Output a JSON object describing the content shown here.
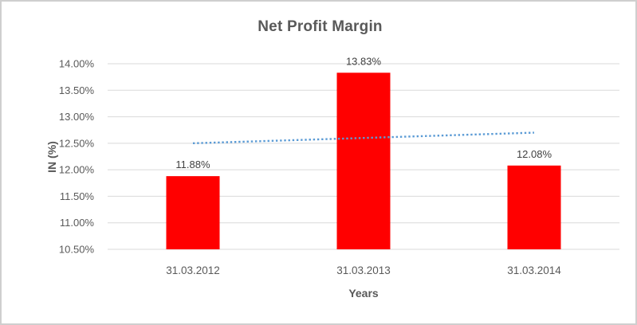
{
  "frame": {
    "background": "#ffffff",
    "border_color": "#cfcfcf"
  },
  "chart_data": {
    "type": "bar",
    "title": "Net Profit Margin",
    "xlabel": "Years",
    "ylabel": "IN (%)",
    "categories": [
      "31.03.2012",
      "31.03.2013",
      "31.03.2014"
    ],
    "values": [
      11.88,
      13.83,
      12.08
    ],
    "data_labels": [
      "11.88%",
      "13.83%",
      "12.08%"
    ],
    "ylim": [
      10.5,
      14.0
    ],
    "ytick_step": 0.5,
    "ytick_labels": [
      "10.50%",
      "11.00%",
      "11.50%",
      "12.00%",
      "12.50%",
      "13.00%",
      "13.50%",
      "14.00%"
    ],
    "grid": true,
    "legend": false,
    "bar_color": "#ff0000",
    "gridline_color": "#d9d9d9",
    "tick_text_color": "#595959",
    "data_label_color": "#404040",
    "trendline": {
      "type": "linear",
      "style": "dotted",
      "color": "#5b9bd5",
      "start_value": 12.5,
      "end_value": 12.7
    }
  }
}
